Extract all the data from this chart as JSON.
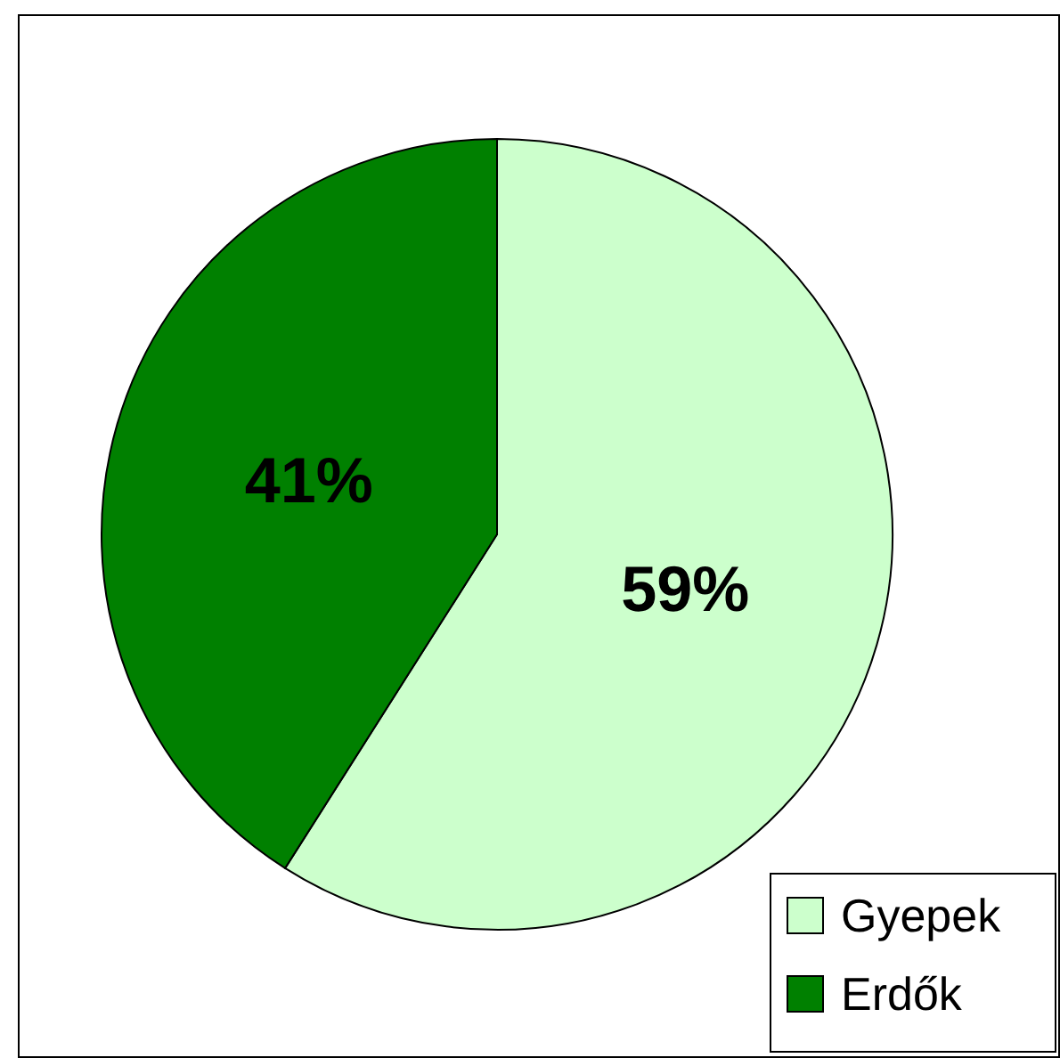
{
  "chart_data": {
    "type": "pie",
    "categories": [
      "Gyepek",
      "Erdők"
    ],
    "values": [
      59,
      41
    ],
    "colors": [
      "#ccffcc",
      "#008000"
    ],
    "value_labels": [
      "59%",
      "41%"
    ],
    "legend": "bottom right"
  }
}
